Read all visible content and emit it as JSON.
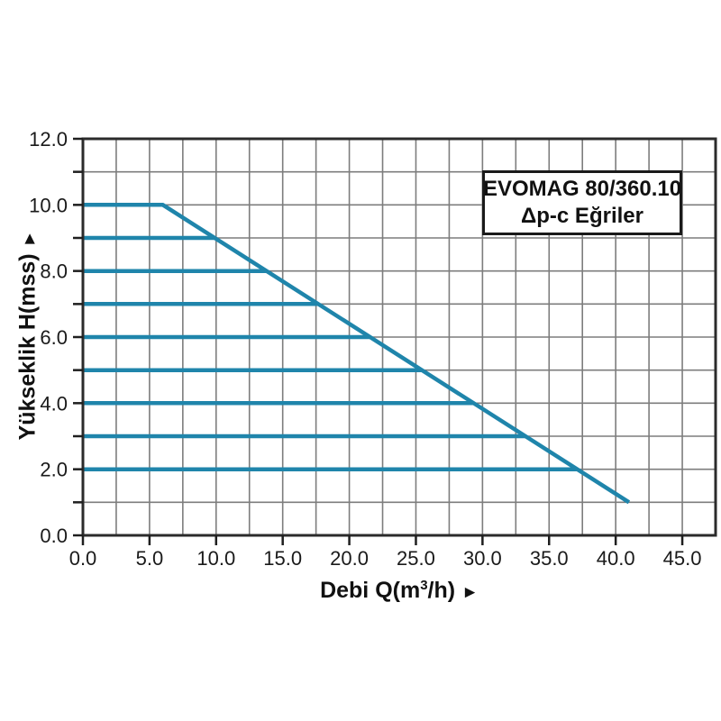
{
  "page": {
    "background": "#ffffff"
  },
  "legend": {
    "line1": "EVOMAG 80/360.10",
    "line2": "Δp-c Eğriler"
  },
  "chart_data": {
    "type": "line",
    "title": "EVOMAG 80/360.10 Δp-c Eğriler",
    "xlabel_parts": {
      "prefix": "Debi Q(m",
      "superscript": "3",
      "suffix": "/h)",
      "arrow": "►"
    },
    "ylabel": "Yükseklik H(mss)",
    "ylabel_arrow": "►",
    "x_axis": {
      "range": [
        0,
        47.5
      ],
      "grid_step": 2.5,
      "tick_values": [
        0,
        5,
        10,
        15,
        20,
        25,
        30,
        35,
        40,
        45
      ],
      "tick_labels": [
        "0.0",
        "5.0",
        "10.0",
        "15.0",
        "20.0",
        "25.0",
        "30.0",
        "35.0",
        "40.0",
        "45.0"
      ]
    },
    "y_axis": {
      "range": [
        0,
        12
      ],
      "grid_step": 1.0,
      "tick_values": [
        0,
        1,
        2,
        3,
        4,
        5,
        6,
        7,
        8,
        9,
        10,
        11,
        12
      ],
      "labeled_tick_values": [
        0,
        2,
        4,
        6,
        8,
        10,
        12
      ],
      "labeled_tick_labels": [
        "0.0",
        "2.0",
        "4.0",
        "6.0",
        "8.0",
        "10.0",
        "12.0"
      ]
    },
    "series": [
      {
        "name": "max-curve-envelope",
        "H": 10,
        "points": [
          [
            0,
            10
          ],
          [
            6,
            10
          ],
          [
            41,
            1
          ]
        ]
      },
      {
        "name": "dp-c-curve-9",
        "H": 9,
        "points": [
          [
            0,
            9
          ],
          [
            9.9,
            9
          ]
        ]
      },
      {
        "name": "dp-c-curve-8",
        "H": 8,
        "points": [
          [
            0,
            8
          ],
          [
            13.8,
            8
          ]
        ]
      },
      {
        "name": "dp-c-curve-7",
        "H": 7,
        "points": [
          [
            0,
            7
          ],
          [
            17.7,
            7
          ]
        ]
      },
      {
        "name": "dp-c-curve-6",
        "H": 6,
        "points": [
          [
            0,
            6
          ],
          [
            21.6,
            6
          ]
        ]
      },
      {
        "name": "dp-c-curve-5",
        "H": 5,
        "points": [
          [
            0,
            5
          ],
          [
            25.4,
            5
          ]
        ]
      },
      {
        "name": "dp-c-curve-4",
        "H": 4,
        "points": [
          [
            0,
            4
          ],
          [
            29.3,
            4
          ]
        ]
      },
      {
        "name": "dp-c-curve-3",
        "H": 3,
        "points": [
          [
            0,
            3
          ],
          [
            33.2,
            3
          ]
        ]
      },
      {
        "name": "dp-c-curve-2",
        "H": 2,
        "points": [
          [
            0,
            2
          ],
          [
            37.1,
            2
          ]
        ]
      }
    ],
    "legend_position": "upper-right",
    "grid": true,
    "colors": {
      "curve": "#1f85ab",
      "grid": "#7d7d7d",
      "axis": "#2b2b2b",
      "tick": "#1f1f1f",
      "text": "#1a1a1a"
    }
  }
}
